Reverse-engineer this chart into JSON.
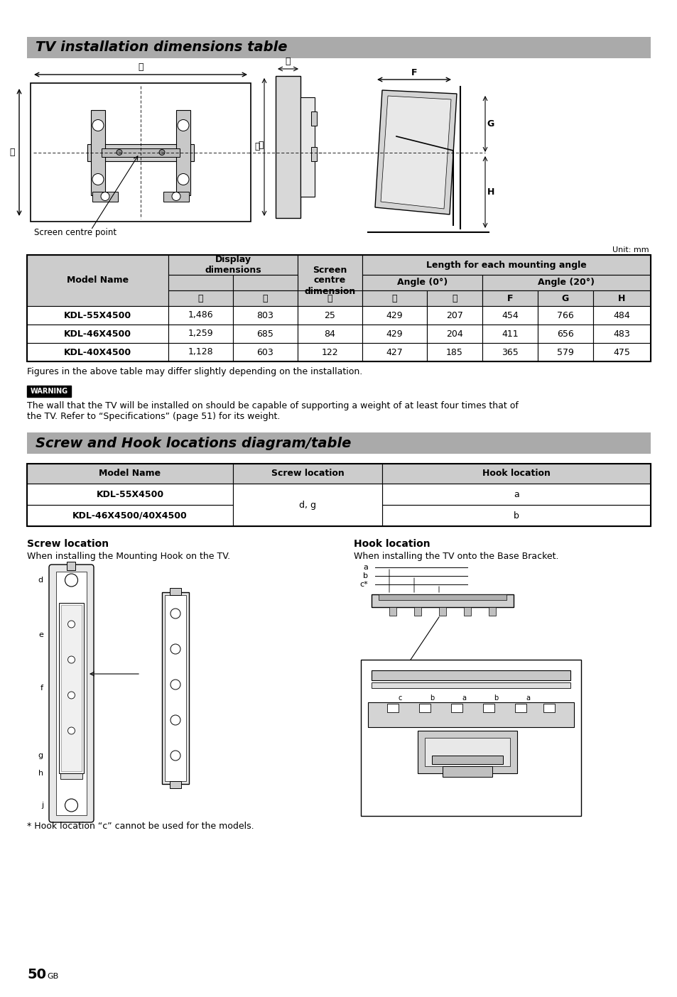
{
  "title1": "TV installation dimensions table",
  "title2": "Screw and Hook locations diagram/table",
  "bg_color": "#ffffff",
  "header_gray": "#aaaaaa",
  "cell_gray": "#cccccc",
  "table1_rows": [
    [
      "KDL-55X4500",
      "1,486",
      "803",
      "25",
      "429",
      "207",
      "454",
      "766",
      "484"
    ],
    [
      "KDL-46X4500",
      "1,259",
      "685",
      "84",
      "429",
      "204",
      "411",
      "656",
      "483"
    ],
    [
      "KDL-40X4500",
      "1,128",
      "603",
      "122",
      "427",
      "185",
      "365",
      "579",
      "475"
    ]
  ],
  "unit_text": "Unit: mm",
  "fig_caption": "Figures in the above table may differ slightly depending on the installation.",
  "warning_text": "The wall that the TV will be installed on should be capable of supporting a weight of at least four times that of\nthe TV. Refer to “Specifications” (page 51) for its weight.",
  "table2_rows": [
    [
      "KDL-55X4500",
      "d, g",
      "a"
    ],
    [
      "KDL-46X4500/40X4500",
      "d, g",
      "b"
    ]
  ],
  "screw_label": "Screw location",
  "hook_label": "Hook location",
  "screw_desc": "When installing the Mounting Hook on the TV.",
  "hook_desc": "When installing the TV onto the Base Bracket.",
  "hook_footnote": "* Hook location “c” cannot be used for the models.",
  "page_number": "50",
  "page_suffix": "GB"
}
